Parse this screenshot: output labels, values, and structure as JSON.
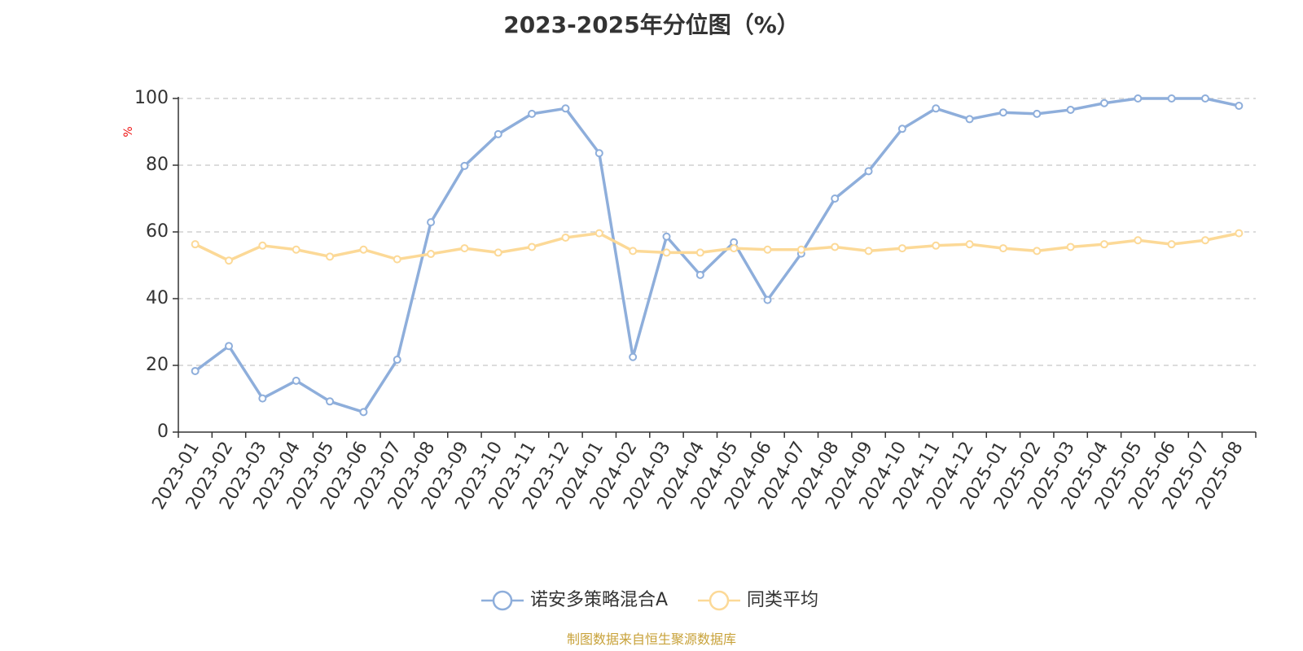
{
  "chart_data": {
    "type": "line",
    "title": "2023-2025年分位图（%）",
    "ylabel": "%",
    "ylim": [
      0,
      100
    ],
    "yticks": [
      "0",
      "20",
      "40",
      "60",
      "80",
      "100"
    ],
    "grid": true,
    "legend_position": "bottom",
    "categories": [
      "2023-01",
      "2023-02",
      "2023-03",
      "2023-04",
      "2023-05",
      "2023-06",
      "2023-07",
      "2023-08",
      "2023-09",
      "2023-10",
      "2023-11",
      "2023-12",
      "2024-01",
      "2024-02",
      "2024-03",
      "2024-04",
      "2024-05",
      "2024-06",
      "2024-07",
      "2024-08",
      "2024-09",
      "2024-10",
      "2024-11",
      "2024-12",
      "2025-01",
      "2025-02",
      "2025-03",
      "2025-04",
      "2025-05",
      "2025-06",
      "2025-07",
      "2025-08"
    ],
    "series": [
      {
        "name": "诺安多策略混合A",
        "color": "#8eaedb",
        "values": [
          18.3,
          25.8,
          10.1,
          15.4,
          9.2,
          6.0,
          21.7,
          62.9,
          79.8,
          89.3,
          95.4,
          97.0,
          83.6,
          22.5,
          58.6,
          47.1,
          56.9,
          39.6,
          53.5,
          70.0,
          78.2,
          90.9,
          97.0,
          93.8,
          95.8,
          95.4,
          96.6,
          98.6,
          100,
          100,
          100,
          97.8
        ]
      },
      {
        "name": "同类平均",
        "color": "#fcd997",
        "values": [
          56.3,
          51.4,
          55.9,
          54.7,
          52.6,
          54.7,
          51.8,
          53.4,
          55.1,
          53.8,
          55.5,
          58.3,
          59.6,
          54.3,
          53.8,
          53.8,
          55.1,
          54.7,
          54.7,
          55.5,
          54.3,
          55.1,
          55.9,
          56.3,
          55.1,
          54.3,
          55.5,
          56.3,
          57.5,
          56.3,
          57.5,
          59.6
        ]
      }
    ]
  },
  "source": {
    "text": "制图数据来自恒生聚源数据库",
    "color": "#c8a23a"
  },
  "colors": {
    "axis": "#333333",
    "grid": "#c8c8c8",
    "ylabel": "#ee1111"
  }
}
